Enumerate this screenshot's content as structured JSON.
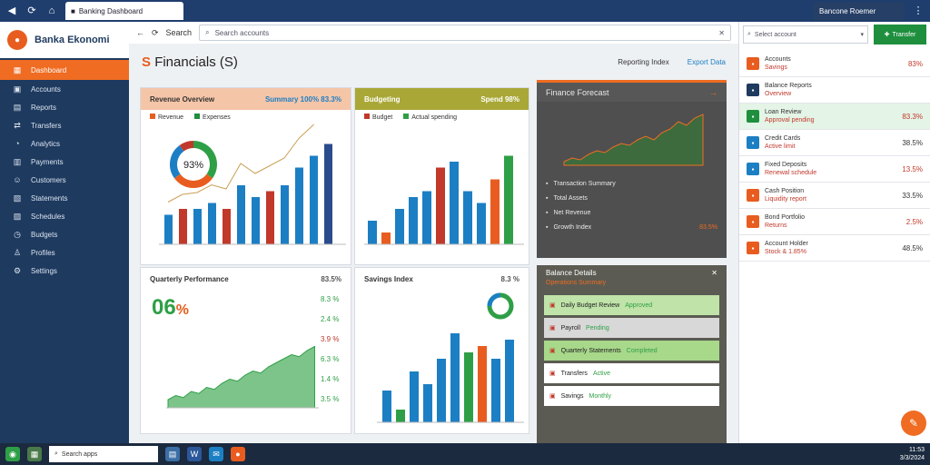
{
  "browser": {
    "tab_title": "Banking Dashboard",
    "right_tab": "Bancone Roemer"
  },
  "brand": {
    "name": "Banka Ekonomi"
  },
  "sidebar": {
    "items": [
      {
        "label": "Dashboard",
        "icon": "grid-icon"
      },
      {
        "label": "Accounts",
        "icon": "wallet-icon"
      },
      {
        "label": "Reports",
        "icon": "report-icon"
      },
      {
        "label": "Transfers",
        "icon": "transfer-icon"
      },
      {
        "label": "Analytics",
        "icon": "chart-icon"
      },
      {
        "label": "Payments",
        "icon": "payment-icon"
      },
      {
        "label": "Customers",
        "icon": "user-icon"
      },
      {
        "label": "Statements",
        "icon": "doc-icon"
      },
      {
        "label": "Schedules",
        "icon": "calendar-icon"
      },
      {
        "label": "Budgets",
        "icon": "clock-icon"
      },
      {
        "label": "Profiles",
        "icon": "profile-icon"
      },
      {
        "label": "Settings",
        "icon": "gear-icon"
      }
    ]
  },
  "topbar": {
    "search_label": "Search",
    "search_placeholder": "Search accounts"
  },
  "header": {
    "title": "Financials (S)",
    "sign": "S",
    "title_right_label": "Reporting Index",
    "title_right_link": "Export Data"
  },
  "card1": {
    "title": "Revenue Overview",
    "right": "Summary 100% 83.3%",
    "donut_label": "93%",
    "legend": [
      "Revenue",
      "Expenses"
    ]
  },
  "card2": {
    "title": "Budgeting",
    "right": "Spend 98%",
    "legend": [
      "Budget",
      "Actual spending"
    ]
  },
  "card3": {
    "title": "Quarterly Performance",
    "right": "83.5%",
    "big_num": "06",
    "big_pct": "%",
    "pcts": [
      "8.3 %",
      "2.4 %",
      "3.9 %",
      "6.3 %",
      "1.4 %",
      "3.5 %"
    ]
  },
  "card4": {
    "title": "Savings Index",
    "right": "8.3 %"
  },
  "dark": {
    "title": "Finance Forecast",
    "rows": [
      {
        "label": "Transaction Summary",
        "val": ""
      },
      {
        "label": "Total Assets",
        "val": ""
      },
      {
        "label": "Net Revenue",
        "val": ""
      },
      {
        "label": "Growth Index",
        "val": "83.5%"
      }
    ]
  },
  "list": {
    "title": "Balance Details",
    "subtitle": "Operations Summary",
    "rows": [
      {
        "label": "Daily Budget Review",
        "status": "Approved"
      },
      {
        "label": "Payroll",
        "status": "Pending"
      },
      {
        "label": "Quarterly Statements",
        "status": "Completed"
      },
      {
        "label": "Transfers",
        "status": "Active"
      },
      {
        "label": "Savings",
        "status": "Monthly"
      }
    ]
  },
  "right": {
    "select": "Select account",
    "button": "Transfer",
    "items": [
      {
        "title": "Accounts",
        "sub": "Savings",
        "val": "83%",
        "color": "#e85d1f"
      },
      {
        "title": "Balance Reports",
        "sub": "Overview",
        "val": "",
        "color": "#1e3a5f"
      },
      {
        "title": "Loan Review",
        "sub": "Approval pending",
        "val": "83.3%",
        "color": "#1f8f3e"
      },
      {
        "title": "Credit Cards",
        "sub": "Active limit",
        "val": "38.5%",
        "color": "#1c7fc4"
      },
      {
        "title": "Fixed Deposits",
        "sub": "Renewal schedule",
        "val": "13.5%",
        "color": "#1c7fc4"
      },
      {
        "title": "Cash Position",
        "sub": "Liquidity report",
        "val": "33.5%",
        "color": "#e85d1f"
      },
      {
        "title": "Bond Portfolio",
        "sub": "Returns",
        "val": "2.5%",
        "color": "#e85d1f"
      },
      {
        "title": "Account Holder",
        "sub": "Stock & 1.85%",
        "val": "48.5%",
        "color": "#e85d1f"
      }
    ]
  },
  "taskbar": {
    "search": "Search apps",
    "time": "11:53",
    "date": "3/3/2024"
  }
}
